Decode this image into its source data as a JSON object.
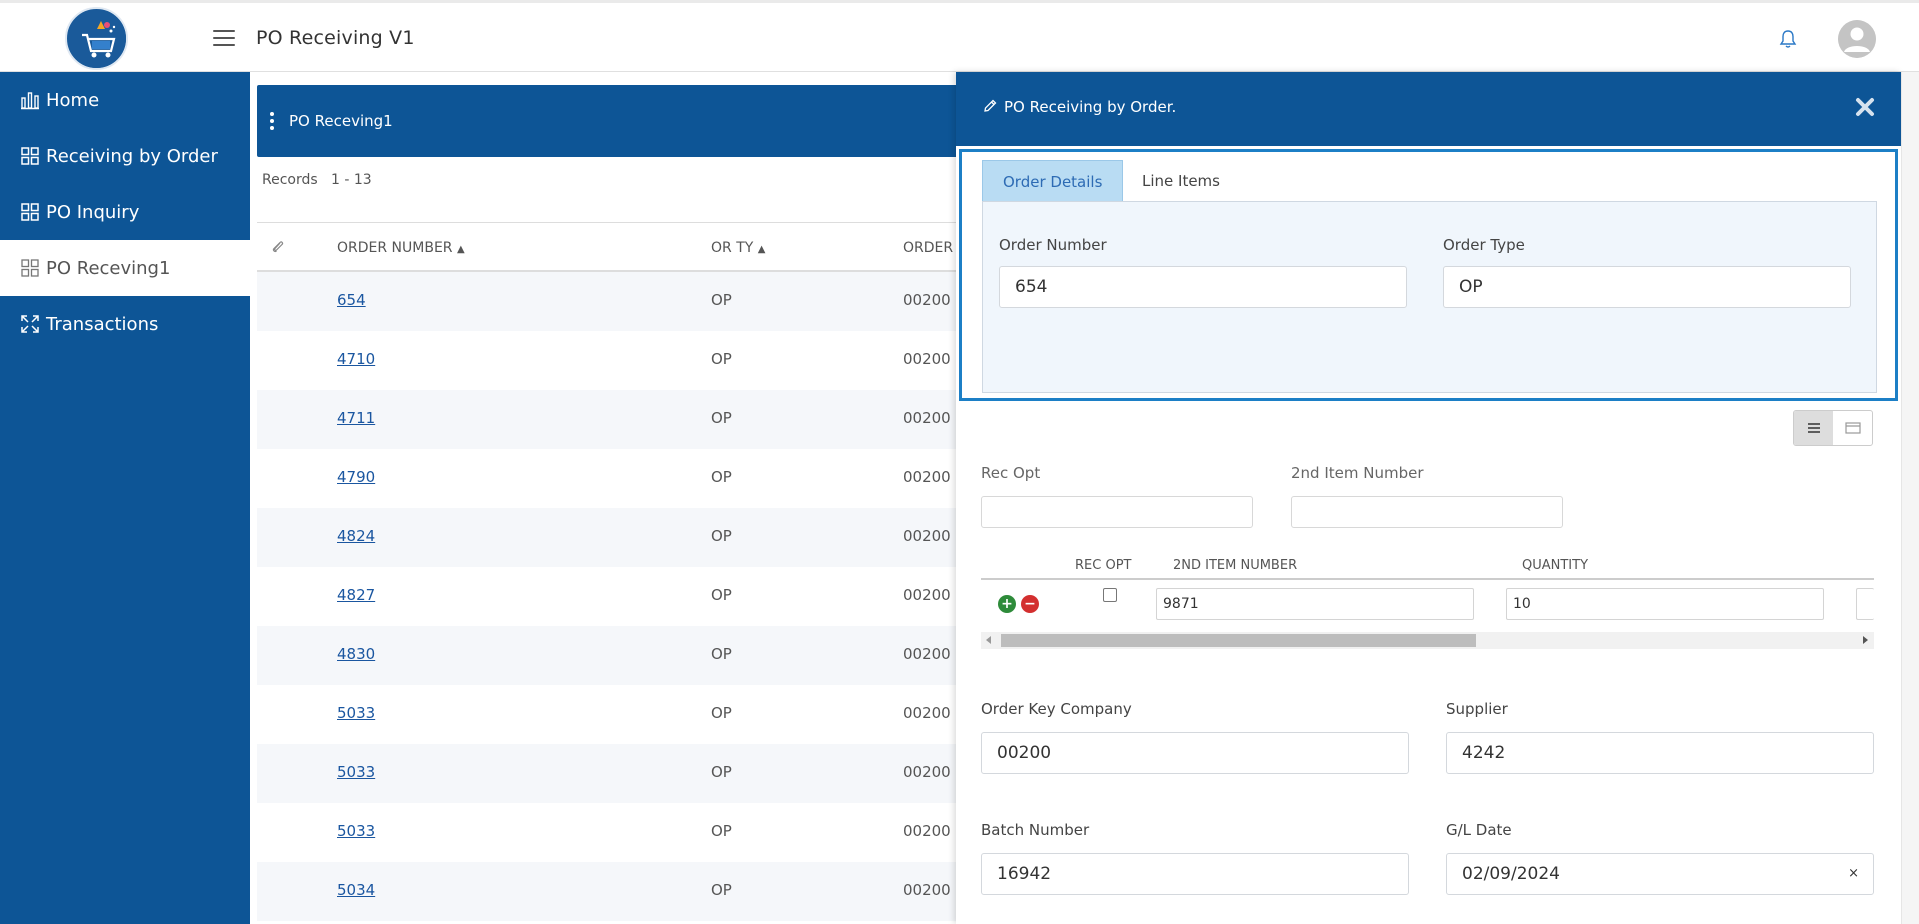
{
  "header": {
    "app_title": "PO Receiving V1"
  },
  "sidebar": {
    "items": [
      {
        "label": "Home",
        "icon": "bar-chart-icon",
        "active": false
      },
      {
        "label": "Receiving by Order",
        "icon": "grid-icon",
        "active": false
      },
      {
        "label": "PO Inquiry",
        "icon": "grid-icon",
        "active": false
      },
      {
        "label": "PO Receving1",
        "icon": "grid-icon",
        "active": true
      },
      {
        "label": "Transactions",
        "icon": "expand-icon",
        "active": false
      }
    ]
  },
  "list": {
    "panel_title": "PO Receving1",
    "records_label": "Records",
    "records_range": "1 - 13",
    "columns": {
      "order_number": "ORDER NUMBER",
      "or_ty": "OR TY",
      "order": "ORDER"
    },
    "rows": [
      {
        "order_number": "654",
        "or_ty": "OP",
        "company": "00200"
      },
      {
        "order_number": "4710",
        "or_ty": "OP",
        "company": "00200"
      },
      {
        "order_number": "4711",
        "or_ty": "OP",
        "company": "00200"
      },
      {
        "order_number": "4790",
        "or_ty": "OP",
        "company": "00200"
      },
      {
        "order_number": "4824",
        "or_ty": "OP",
        "company": "00200"
      },
      {
        "order_number": "4827",
        "or_ty": "OP",
        "company": "00200"
      },
      {
        "order_number": "4830",
        "or_ty": "OP",
        "company": "00200"
      },
      {
        "order_number": "5033",
        "or_ty": "OP",
        "company": "00200"
      },
      {
        "order_number": "5033",
        "or_ty": "OP",
        "company": "00200"
      },
      {
        "order_number": "5033",
        "or_ty": "OP",
        "company": "00200"
      },
      {
        "order_number": "5034",
        "or_ty": "OP",
        "company": "00200"
      }
    ]
  },
  "drawer": {
    "title": "PO Receiving by Order.",
    "tabs": {
      "order_details": "Order Details",
      "line_items": "Line Items"
    },
    "order_number_label": "Order Number",
    "order_number_value": "654",
    "order_type_label": "Order Type",
    "order_type_value": "OP",
    "rec_opt_label": "Rec Opt",
    "second_item_label": "2nd Item Number",
    "line_grid": {
      "col_rec_opt": "REC OPT",
      "col_2nd_item": "2ND ITEM NUMBER",
      "col_quantity": "QUANTITY",
      "row": {
        "item": "9871",
        "quantity": "10"
      }
    },
    "order_key_company_label": "Order Key Company",
    "order_key_company_value": "00200",
    "supplier_label": "Supplier",
    "supplier_value": "4242",
    "batch_number_label": "Batch Number",
    "batch_number_value": "16942",
    "gl_date_label": "G/L Date",
    "gl_date_value": "02/09/2024",
    "clear_symbol": "×"
  },
  "colors": {
    "primary": "#0d5596",
    "tab_active_bg": "#b9dcf3",
    "focus_border": "#1c7fc6",
    "link": "#1a56a0",
    "add_green": "#2e8b3a",
    "remove_red": "#d32f2f"
  }
}
